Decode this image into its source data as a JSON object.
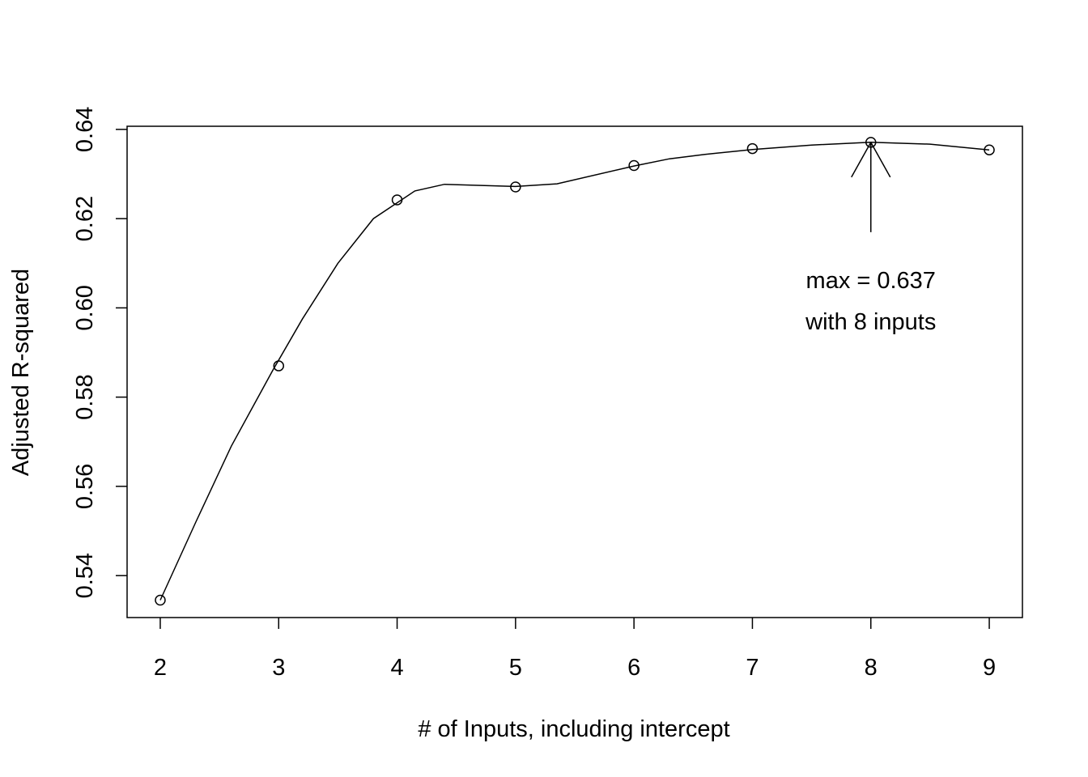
{
  "chart_data": {
    "type": "line",
    "title": "",
    "xlabel": "# of Inputs, including intercept",
    "ylabel": "Adjusted R-squared",
    "xlim": [
      1.72,
      9.28
    ],
    "ylim": [
      0.5306,
      0.6407
    ],
    "x_ticks": [
      "2",
      "3",
      "4",
      "5",
      "6",
      "7",
      "8",
      "9"
    ],
    "y_ticks": [
      "0.54",
      "0.56",
      "0.58",
      "0.60",
      "0.62",
      "0.64"
    ],
    "points": {
      "x": [
        2,
        3,
        4,
        5,
        6,
        7,
        8,
        9
      ],
      "y": [
        0.5345,
        0.587,
        0.6242,
        0.6271,
        0.6319,
        0.6357,
        0.6371,
        0.6354
      ]
    },
    "smooth_curve": {
      "x": [
        2,
        2.3,
        2.6,
        2.95,
        3.2,
        3.5,
        3.8,
        4.15,
        4.4,
        5.0,
        5.35,
        6.0,
        6.3,
        6.6,
        7.0,
        7.5,
        8.0,
        8.5,
        9.0
      ],
      "y": [
        0.5345,
        0.552,
        0.569,
        0.586,
        0.5975,
        0.61,
        0.62,
        0.6262,
        0.6277,
        0.6272,
        0.6278,
        0.6318,
        0.6334,
        0.6344,
        0.6355,
        0.6365,
        0.6371,
        0.6367,
        0.6354
      ]
    },
    "grid": false,
    "legend": "none",
    "annotation": {
      "line1": "max = 0.637",
      "line2": "with 8 inputs",
      "arrow_to": {
        "x": 8,
        "y": 0.6371
      }
    }
  }
}
